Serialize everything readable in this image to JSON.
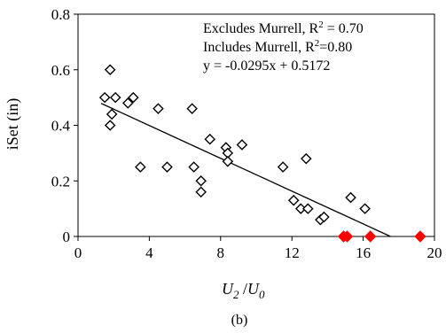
{
  "chart_data": {
    "type": "scatter",
    "xlabel_main": "U",
    "xlabel_sub1": "2",
    "xlabel_sep": " /",
    "xlabel_main2": "U",
    "xlabel_sub2": "0",
    "ylabel": "iSet (in)",
    "xlim": [
      0,
      20
    ],
    "ylim": [
      0,
      0.8
    ],
    "x_ticks": [
      0,
      4,
      8,
      12,
      16,
      20
    ],
    "y_ticks": [
      0,
      0.2,
      0.4,
      0.6,
      0.8
    ],
    "x_tick_labels": [
      "0",
      "4",
      "8",
      "12",
      "16",
      "20"
    ],
    "y_tick_labels": [
      "0",
      "0.2",
      "0.4",
      "0.6",
      "0.8"
    ],
    "grid": false,
    "series": [
      {
        "marker": "diamond-open",
        "color": "#000000",
        "points": [
          [
            1.5,
            0.5
          ],
          [
            1.8,
            0.6
          ],
          [
            1.8,
            0.4
          ],
          [
            1.9,
            0.44
          ],
          [
            2.1,
            0.5
          ],
          [
            2.8,
            0.48
          ],
          [
            3.1,
            0.5
          ],
          [
            3.5,
            0.25
          ],
          [
            4.5,
            0.46
          ],
          [
            5.0,
            0.25
          ],
          [
            6.4,
            0.46
          ],
          [
            6.5,
            0.25
          ],
          [
            6.9,
            0.2
          ],
          [
            6.9,
            0.16
          ],
          [
            7.4,
            0.35
          ],
          [
            8.3,
            0.32
          ],
          [
            8.4,
            0.3
          ],
          [
            8.4,
            0.27
          ],
          [
            9.2,
            0.33
          ],
          [
            11.5,
            0.25
          ],
          [
            12.1,
            0.13
          ],
          [
            12.5,
            0.1
          ],
          [
            12.8,
            0.28
          ],
          [
            12.9,
            0.1
          ],
          [
            13.6,
            0.06
          ],
          [
            13.8,
            0.07
          ],
          [
            15.3,
            0.14
          ],
          [
            16.1,
            0.1
          ]
        ]
      },
      {
        "marker": "diamond-filled",
        "color": "#ff0000",
        "points": [
          [
            14.9,
            0.0
          ],
          [
            15.1,
            0.0
          ],
          [
            16.4,
            0.0
          ],
          [
            19.2,
            0.0
          ]
        ]
      }
    ],
    "trendline": {
      "slope": -0.0295,
      "intercept": 0.5172,
      "x_start": 1.3
    },
    "annotations": [
      {
        "prefix": "Excludes Murrell, R",
        "sup": "2",
        "suffix": " = 0.70"
      },
      {
        "prefix": "Includes Murrell, R",
        "sup": "2",
        "suffix": "=0.80"
      },
      {
        "prefix": "y = -0.0295x + 0.5172",
        "sup": "",
        "suffix": ""
      }
    ],
    "caption": "(b)"
  }
}
